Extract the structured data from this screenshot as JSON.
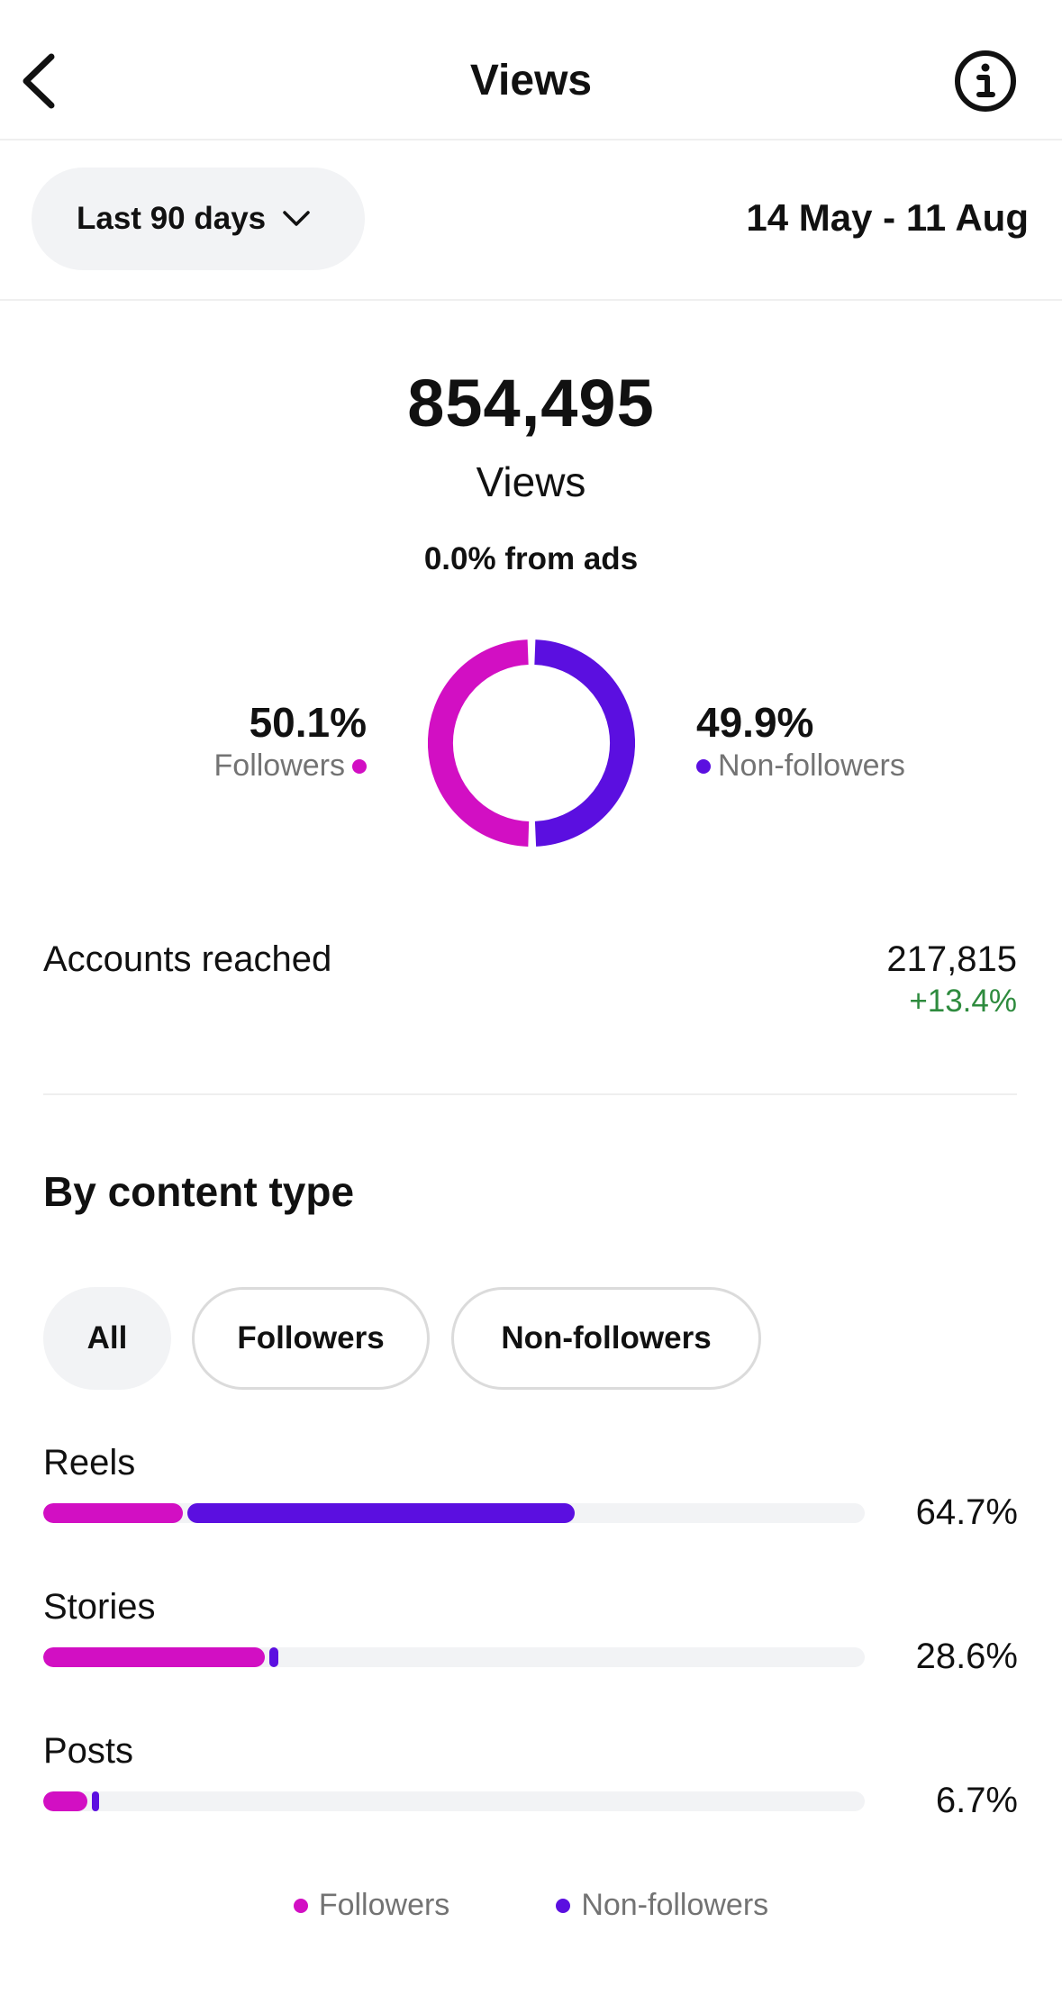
{
  "header": {
    "title": "Views",
    "back_icon": "chevron-left-icon",
    "info_icon": "info-icon"
  },
  "filter": {
    "range_label": "Last 90 days",
    "range_icon": "chevron-down-icon",
    "date_range": "14 May - 11 Aug"
  },
  "summary": {
    "total": "854,495",
    "total_label": "Views",
    "ads_note": "0.0% from ads"
  },
  "audience": {
    "followers_pct": "50.1%",
    "followers_label": "Followers",
    "followers_share": 50.1,
    "nonfollowers_pct": "49.9%",
    "nonfollowers_label": "Non-followers",
    "nonfollowers_share": 49.9
  },
  "reach": {
    "label": "Accounts reached",
    "value": "217,815",
    "change": "+13.4%"
  },
  "content_type": {
    "title": "By content type",
    "tabs": [
      "All",
      "Followers",
      "Non-followers"
    ],
    "selected_tab": "All",
    "rows": [
      {
        "name": "Reels",
        "pct": "64.7%",
        "followers": 17.3,
        "nonfollowers": 47.4
      },
      {
        "name": "Stories",
        "pct": "28.6%",
        "followers": 27.2,
        "nonfollowers": 1.4
      },
      {
        "name": "Posts",
        "pct": "6.7%",
        "followers": 5.6,
        "nonfollowers": 1.1
      }
    ]
  },
  "legend": {
    "followers": "Followers",
    "nonfollowers": "Non-followers"
  },
  "colors": {
    "followers": "#d20fc3",
    "nonfollowers": "#5b0fe0",
    "positive": "#2e8b3e",
    "muted": "#737373",
    "pill": "#f2f3f5"
  }
}
